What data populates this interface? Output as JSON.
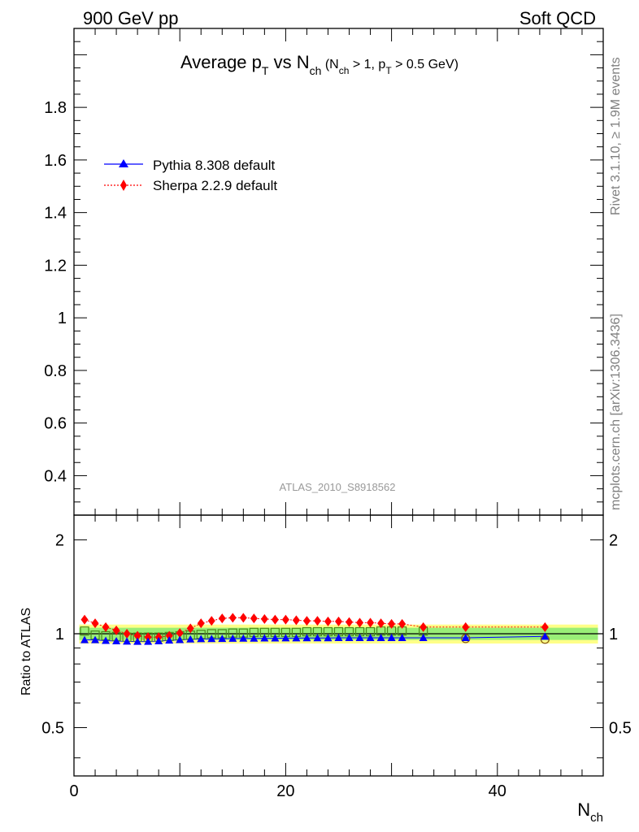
{
  "header": {
    "left": "900 GeV pp",
    "right": "Soft QCD"
  },
  "title": {
    "main": "Average p",
    "main_sub": "T",
    "mid": " vs N",
    "mid_sub": "ch",
    "paren_open": " (N",
    "paren_sub1": "ch",
    "paren_mid": " > 1, p",
    "paren_sub2": "T",
    "paren_end": " > 0.5 GeV)"
  },
  "side_text": {
    "rivet": "Rivet 3.1.10, ≥ 1.9M events",
    "mcplots": "mcplots.cern.ch [arXiv:1306.3436]"
  },
  "watermark": "ATLAS_2010_S8918562",
  "legend": {
    "pythia": "Pythia 8.308 default",
    "sherpa": "Sherpa 2.2.9 default"
  },
  "colors": {
    "pythia": "#0000ff",
    "sherpa": "#ff0000",
    "data_marker": "#4a8a1a",
    "band_inner": "#99ee77",
    "band_outer": "#ffff88"
  },
  "chart_data": [
    {
      "type": "scatter",
      "panel": "main",
      "xlabel": "",
      "ylabel": "",
      "xlim": [
        0,
        50
      ],
      "ylim": [
        0.25,
        2.1
      ],
      "yticks": [
        "0.4",
        "0.6",
        "0.8",
        "1",
        "1.2",
        "1.4",
        "1.6",
        "1.8"
      ],
      "series": []
    },
    {
      "type": "scatter",
      "panel": "ratio",
      "xlabel": "N",
      "xlabel_sub": "ch",
      "ylabel": "Ratio to ATLAS",
      "xlim": [
        0,
        50
      ],
      "ylim": [
        0.35,
        2.4
      ],
      "log_y": true,
      "xticks": [
        "0",
        "20",
        "40"
      ],
      "yticks": [
        "0.5",
        "1",
        "2"
      ],
      "x": [
        1,
        2,
        3,
        4,
        5,
        6,
        7,
        8,
        9,
        10,
        11,
        12,
        13,
        14,
        15,
        16,
        17,
        18,
        19,
        20,
        21,
        22,
        23,
        24,
        25,
        26,
        27,
        28,
        29,
        30,
        31,
        33,
        37,
        44.5
      ],
      "band_inner": [
        0.955,
        1.045
      ],
      "band_outer": [
        0.93,
        1.07
      ],
      "series": [
        {
          "name": "Pythia 8.308 default",
          "values": [
            0.955,
            0.955,
            0.95,
            0.947,
            0.945,
            0.944,
            0.944,
            0.947,
            0.952,
            0.956,
            0.96,
            0.962,
            0.963,
            0.964,
            0.965,
            0.966,
            0.966,
            0.967,
            0.967,
            0.968,
            0.968,
            0.969,
            0.969,
            0.969,
            0.97,
            0.97,
            0.97,
            0.97,
            0.97,
            0.97,
            0.97,
            0.97,
            0.97,
            0.98
          ]
        },
        {
          "name": "Sherpa 2.2.9 default",
          "values": [
            1.11,
            1.08,
            1.05,
            1.025,
            1.0,
            0.985,
            0.975,
            0.975,
            0.985,
            1.005,
            1.04,
            1.08,
            1.1,
            1.12,
            1.125,
            1.125,
            1.12,
            1.115,
            1.11,
            1.11,
            1.105,
            1.1,
            1.1,
            1.095,
            1.095,
            1.09,
            1.085,
            1.085,
            1.08,
            1.075,
            1.075,
            1.05,
            1.05,
            1.05
          ]
        },
        {
          "name": "",
          "values": [
            1.02,
            0.99,
            0.985,
            0.98,
            0.975,
            0.975,
            0.975,
            0.975,
            0.98,
            0.985,
            0.99,
            0.995,
            1.0,
            1.0,
            1.005,
            1.005,
            1.01,
            1.01,
            1.01,
            1.01,
            1.01,
            1.015,
            1.015,
            1.015,
            1.015,
            1.015,
            1.015,
            1.015,
            1.02,
            1.02,
            1.02,
            1.02,
            0.965,
            0.96
          ]
        }
      ]
    }
  ]
}
